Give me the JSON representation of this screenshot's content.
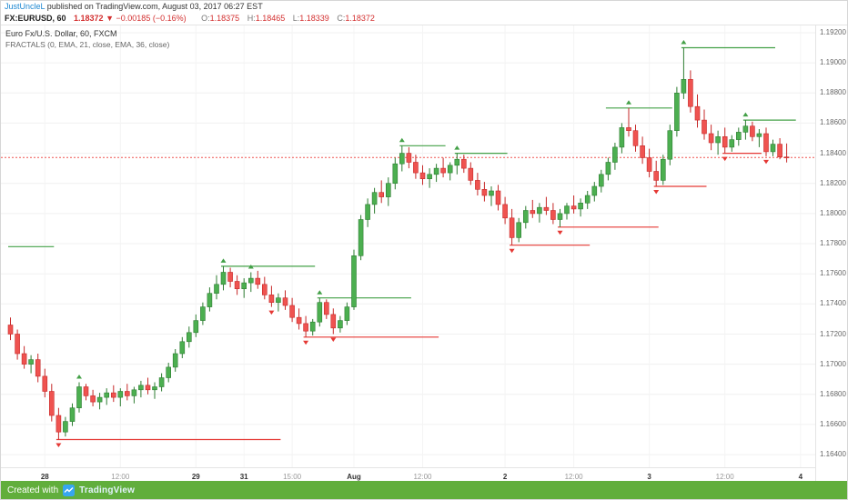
{
  "attribution": {
    "author": "JustUncleL",
    "text": " published on TradingView.com, August 03, 2017 06:27 EST"
  },
  "symbol_bar": {
    "symbol": "FX:EURUSD, 60",
    "last": "1.18372",
    "direction": "▼",
    "change": "−0.00185 (−0.16%)",
    "o_label": "O:",
    "o": "1.18375",
    "h_label": "H:",
    "h": "1.18465",
    "l_label": "L:",
    "l": "1.18339",
    "c_label": "C:",
    "c": "1.18372"
  },
  "legend": {
    "line1": "Euro Fx/U.S. Dollar, 60, FXCM",
    "line2": "FRACTALS (0, EMA, 21, close, EMA, 36, close)"
  },
  "footer": {
    "created_with": "Created with",
    "brand": "TradingView"
  },
  "colors": {
    "up": "#4caf50",
    "up_border": "#2e7d32",
    "down": "#ef5350",
    "down_border": "#c62828",
    "level_up": "#43a047",
    "level_down": "#e53935",
    "last_line": "#ef5350",
    "link_blue": "#1e88d2",
    "value_red": "#d32f2f",
    "footer_green": "#61ae3c"
  },
  "chart_data": {
    "type": "candlestick",
    "symbol": "EURUSD",
    "interval": "60",
    "title": "Euro Fx/U.S. Dollar, 60, FXCM",
    "indicator": "FRACTALS (0, EMA, 21, close, EMA, 36, close)",
    "ylim": [
      1.16316,
      1.19248
    ],
    "last_price": 1.18372,
    "price_axis": [
      "1.19200",
      "1.19000",
      "1.18800",
      "1.18600",
      "1.18400",
      "1.18200",
      "1.18000",
      "1.17800",
      "1.17600",
      "1.17400",
      "1.17200",
      "1.17000",
      "1.16800",
      "1.16600",
      "1.16400"
    ],
    "time_axis": [
      {
        "label": "28",
        "idx": 5,
        "major": true
      },
      {
        "label": "12:00",
        "idx": 16,
        "major": false
      },
      {
        "label": "29",
        "idx": 27,
        "major": true
      },
      {
        "label": "31",
        "idx": 34,
        "major": true
      },
      {
        "label": "15:00",
        "idx": 41,
        "major": false
      },
      {
        "label": "Aug",
        "idx": 50,
        "major": true
      },
      {
        "label": "12:00",
        "idx": 60,
        "major": false
      },
      {
        "label": "2",
        "idx": 72,
        "major": true
      },
      {
        "label": "12:00",
        "idx": 82,
        "major": false
      },
      {
        "label": "3",
        "idx": 93,
        "major": true
      },
      {
        "label": "12:00",
        "idx": 104,
        "major": false
      },
      {
        "label": "4",
        "idx": 115,
        "major": true
      }
    ],
    "candles": [
      [
        1.1726,
        1.1731,
        1.1716,
        1.172
      ],
      [
        1.172,
        1.1723,
        1.1703,
        1.1707
      ],
      [
        1.1707,
        1.1712,
        1.1697,
        1.17
      ],
      [
        1.17,
        1.1706,
        1.1694,
        1.1703
      ],
      [
        1.1703,
        1.1707,
        1.1688,
        1.1692
      ],
      [
        1.1692,
        1.1697,
        1.1678,
        1.1682
      ],
      [
        1.1682,
        1.1687,
        1.1662,
        1.1666
      ],
      [
        1.1666,
        1.1671,
        1.165,
        1.1655
      ],
      [
        1.1655,
        1.1665,
        1.1652,
        1.1662
      ],
      [
        1.1662,
        1.1674,
        1.1659,
        1.1671
      ],
      [
        1.1671,
        1.1688,
        1.1668,
        1.1685
      ],
      [
        1.1685,
        1.1687,
        1.1676,
        1.1679
      ],
      [
        1.1679,
        1.1683,
        1.1672,
        1.1675
      ],
      [
        1.1675,
        1.1681,
        1.167,
        1.1678
      ],
      [
        1.1678,
        1.1684,
        1.1673,
        1.1681
      ],
      [
        1.1681,
        1.1686,
        1.1675,
        1.1678
      ],
      [
        1.1678,
        1.1684,
        1.1672,
        1.1682
      ],
      [
        1.1682,
        1.1687,
        1.1676,
        1.1679
      ],
      [
        1.1679,
        1.1685,
        1.1674,
        1.1683
      ],
      [
        1.1683,
        1.1689,
        1.1678,
        1.1686
      ],
      [
        1.1686,
        1.1691,
        1.168,
        1.1683
      ],
      [
        1.1683,
        1.1688,
        1.1677,
        1.1685
      ],
      [
        1.1685,
        1.1694,
        1.1682,
        1.1691
      ],
      [
        1.1691,
        1.1701,
        1.1688,
        1.1698
      ],
      [
        1.1698,
        1.171,
        1.1695,
        1.1707
      ],
      [
        1.1707,
        1.1718,
        1.1704,
        1.1715
      ],
      [
        1.1715,
        1.1725,
        1.1711,
        1.1721
      ],
      [
        1.1721,
        1.1733,
        1.1718,
        1.1729
      ],
      [
        1.1729,
        1.1741,
        1.1726,
        1.1738
      ],
      [
        1.1738,
        1.1751,
        1.1735,
        1.1747
      ],
      [
        1.1747,
        1.1759,
        1.1743,
        1.1753
      ],
      [
        1.1753,
        1.1765,
        1.1749,
        1.1761
      ],
      [
        1.1761,
        1.1764,
        1.1751,
        1.1755
      ],
      [
        1.1755,
        1.1759,
        1.1746,
        1.175
      ],
      [
        1.175,
        1.1757,
        1.1744,
        1.1754
      ],
      [
        1.1754,
        1.1761,
        1.1748,
        1.1757
      ],
      [
        1.1757,
        1.1762,
        1.175,
        1.1753
      ],
      [
        1.1753,
        1.1758,
        1.1743,
        1.1746
      ],
      [
        1.1746,
        1.1752,
        1.1738,
        1.1741
      ],
      [
        1.1741,
        1.1747,
        1.1735,
        1.1744
      ],
      [
        1.1744,
        1.1749,
        1.1736,
        1.1739
      ],
      [
        1.1739,
        1.1744,
        1.1728,
        1.1731
      ],
      [
        1.1731,
        1.1737,
        1.1723,
        1.1727
      ],
      [
        1.1727,
        1.1732,
        1.1718,
        1.1722
      ],
      [
        1.1722,
        1.173,
        1.1719,
        1.1728
      ],
      [
        1.1728,
        1.1744,
        1.1725,
        1.1741
      ],
      [
        1.1741,
        1.1743,
        1.173,
        1.1733
      ],
      [
        1.1733,
        1.1737,
        1.172,
        1.1724
      ],
      [
        1.1724,
        1.1732,
        1.1721,
        1.1729
      ],
      [
        1.1729,
        1.1741,
        1.1726,
        1.1738
      ],
      [
        1.1738,
        1.1776,
        1.1736,
        1.1772
      ],
      [
        1.1772,
        1.1799,
        1.1769,
        1.1796
      ],
      [
        1.1796,
        1.181,
        1.1791,
        1.1806
      ],
      [
        1.1806,
        1.1817,
        1.18,
        1.1814
      ],
      [
        1.1814,
        1.1822,
        1.1807,
        1.1811
      ],
      [
        1.1811,
        1.1824,
        1.1805,
        1.182
      ],
      [
        1.182,
        1.1837,
        1.1816,
        1.1833
      ],
      [
        1.1833,
        1.1845,
        1.1828,
        1.184
      ],
      [
        1.184,
        1.1844,
        1.183,
        1.1834
      ],
      [
        1.1834,
        1.1839,
        1.1823,
        1.1827
      ],
      [
        1.1827,
        1.1832,
        1.1819,
        1.1823
      ],
      [
        1.1823,
        1.183,
        1.1817,
        1.1826
      ],
      [
        1.1826,
        1.1833,
        1.1821,
        1.183
      ],
      [
        1.183,
        1.1837,
        1.1824,
        1.1827
      ],
      [
        1.1827,
        1.1834,
        1.1822,
        1.1832
      ],
      [
        1.1832,
        1.184,
        1.1826,
        1.1836
      ],
      [
        1.1836,
        1.1839,
        1.1827,
        1.183
      ],
      [
        1.183,
        1.1834,
        1.1819,
        1.1822
      ],
      [
        1.1822,
        1.1827,
        1.1812,
        1.1816
      ],
      [
        1.1816,
        1.1821,
        1.1808,
        1.1812
      ],
      [
        1.1812,
        1.1818,
        1.1805,
        1.1815
      ],
      [
        1.1815,
        1.1819,
        1.1802,
        1.1806
      ],
      [
        1.1806,
        1.1811,
        1.1793,
        1.1797
      ],
      [
        1.1797,
        1.1803,
        1.1779,
        1.1784
      ],
      [
        1.1784,
        1.1797,
        1.1781,
        1.1794
      ],
      [
        1.1794,
        1.1805,
        1.179,
        1.1802
      ],
      [
        1.1802,
        1.1809,
        1.1797,
        1.18
      ],
      [
        1.18,
        1.1807,
        1.1794,
        1.1804
      ],
      [
        1.1804,
        1.1811,
        1.1799,
        1.1802
      ],
      [
        1.1802,
        1.1807,
        1.1793,
        1.1796
      ],
      [
        1.1796,
        1.1803,
        1.1791,
        1.18
      ],
      [
        1.18,
        1.1807,
        1.1796,
        1.1805
      ],
      [
        1.1805,
        1.1812,
        1.18,
        1.1803
      ],
      [
        1.1803,
        1.181,
        1.1798,
        1.1807
      ],
      [
        1.1807,
        1.1815,
        1.1803,
        1.1812
      ],
      [
        1.1812,
        1.1821,
        1.1808,
        1.1818
      ],
      [
        1.1818,
        1.1829,
        1.1814,
        1.1826
      ],
      [
        1.1826,
        1.1837,
        1.1822,
        1.1834
      ],
      [
        1.1834,
        1.1847,
        1.1829,
        1.1844
      ],
      [
        1.1844,
        1.186,
        1.184,
        1.1857
      ],
      [
        1.1857,
        1.187,
        1.1851,
        1.1855
      ],
      [
        1.1855,
        1.1859,
        1.1841,
        1.1845
      ],
      [
        1.1845,
        1.1851,
        1.1833,
        1.1837
      ],
      [
        1.1837,
        1.1843,
        1.1824,
        1.1828
      ],
      [
        1.1828,
        1.1835,
        1.1818,
        1.1822
      ],
      [
        1.1822,
        1.1839,
        1.1819,
        1.1836
      ],
      [
        1.1836,
        1.1859,
        1.1832,
        1.1855
      ],
      [
        1.1855,
        1.1884,
        1.1851,
        1.188
      ],
      [
        1.188,
        1.191,
        1.1876,
        1.1889
      ],
      [
        1.1889,
        1.1895,
        1.1867,
        1.1871
      ],
      [
        1.1871,
        1.1879,
        1.1857,
        1.1862
      ],
      [
        1.1862,
        1.1869,
        1.1849,
        1.1853
      ],
      [
        1.1853,
        1.1859,
        1.1842,
        1.1847
      ],
      [
        1.1847,
        1.1855,
        1.1839,
        1.1851
      ],
      [
        1.1851,
        1.1857,
        1.184,
        1.1844
      ],
      [
        1.1844,
        1.1852,
        1.1841,
        1.1849
      ],
      [
        1.1849,
        1.1857,
        1.1845,
        1.1854
      ],
      [
        1.1854,
        1.1862,
        1.1849,
        1.1858
      ],
      [
        1.1858,
        1.1861,
        1.1848,
        1.1851
      ],
      [
        1.1851,
        1.1856,
        1.1844,
        1.1853
      ],
      [
        1.1853,
        1.1857,
        1.1838,
        1.1841
      ],
      [
        1.1841,
        1.1849,
        1.1838,
        1.1846
      ],
      [
        1.1846,
        1.185,
        1.1836,
        1.18375
      ],
      [
        1.18375,
        1.18465,
        1.18339,
        1.18372
      ]
    ],
    "fractals_up": [
      [
        10,
        1.1688
      ],
      [
        31,
        1.1765
      ],
      [
        35,
        1.1761
      ],
      [
        45,
        1.1744
      ],
      [
        57,
        1.1845
      ],
      [
        65,
        1.184
      ],
      [
        90,
        1.187
      ],
      [
        98,
        1.191
      ],
      [
        107,
        1.1862
      ]
    ],
    "fractals_down": [
      [
        7,
        1.165
      ],
      [
        38,
        1.1738
      ],
      [
        43,
        1.1718
      ],
      [
        47,
        1.172
      ],
      [
        73,
        1.1779
      ],
      [
        80,
        1.1791
      ],
      [
        94,
        1.1818
      ],
      [
        104,
        1.184
      ],
      [
        110,
        1.1838
      ]
    ],
    "levels": [
      {
        "price": 1.1778,
        "from": 0,
        "to": 6,
        "dir": "up"
      },
      {
        "price": 1.1765,
        "from": 31,
        "to": 44,
        "dir": "up"
      },
      {
        "price": 1.1744,
        "from": 45,
        "to": 58,
        "dir": "up"
      },
      {
        "price": 1.1845,
        "from": 57,
        "to": 63,
        "dir": "up"
      },
      {
        "price": 1.184,
        "from": 65,
        "to": 72,
        "dir": "up"
      },
      {
        "price": 1.187,
        "from": 87,
        "to": 96,
        "dir": "up"
      },
      {
        "price": 1.191,
        "from": 98,
        "to": 111,
        "dir": "up"
      },
      {
        "price": 1.1862,
        "from": 107,
        "to": 114,
        "dir": "up"
      },
      {
        "price": 1.165,
        "from": 7,
        "to": 39,
        "dir": "down"
      },
      {
        "price": 1.1718,
        "from": 43,
        "to": 62,
        "dir": "down"
      },
      {
        "price": 1.1779,
        "from": 73,
        "to": 84,
        "dir": "down"
      },
      {
        "price": 1.1791,
        "from": 80,
        "to": 94,
        "dir": "down"
      },
      {
        "price": 1.1818,
        "from": 94,
        "to": 101,
        "dir": "down"
      },
      {
        "price": 1.184,
        "from": 104,
        "to": 109,
        "dir": "down"
      }
    ]
  }
}
